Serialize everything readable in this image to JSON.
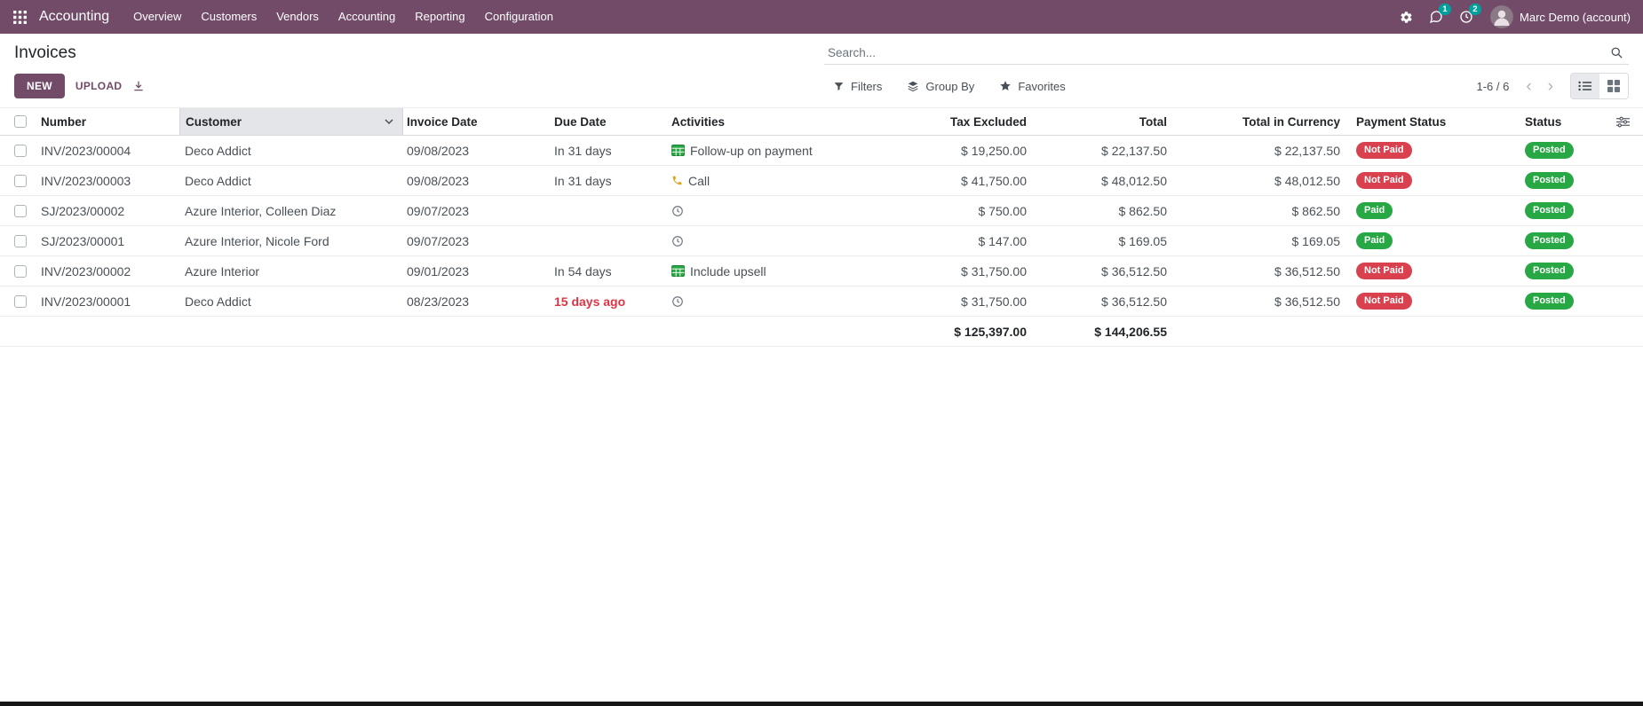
{
  "navbar": {
    "app_name": "Accounting",
    "menu_items": [
      "Overview",
      "Customers",
      "Vendors",
      "Accounting",
      "Reporting",
      "Configuration"
    ],
    "messages_badge": "1",
    "activities_badge": "2",
    "user_name": "Marc Demo (account)",
    "colors": {
      "navbar_bg": "#714B67",
      "badge_bg": "#00A09D"
    }
  },
  "control_panel": {
    "title": "Invoices",
    "search_placeholder": "Search...",
    "new_button": "NEW",
    "upload_button": "UPLOAD",
    "filters_label": "Filters",
    "group_by_label": "Group By",
    "favorites_label": "Favorites",
    "pager": "1-6 / 6"
  },
  "table": {
    "columns": [
      {
        "label": "Number",
        "align": "left"
      },
      {
        "label": "Customer",
        "align": "left",
        "sorted": "asc"
      },
      {
        "label": "Invoice Date",
        "align": "left"
      },
      {
        "label": "Due Date",
        "align": "left"
      },
      {
        "label": "Activities",
        "align": "left"
      },
      {
        "label": "Tax Excluded",
        "align": "right"
      },
      {
        "label": "Total",
        "align": "right"
      },
      {
        "label": "Total in Currency",
        "align": "right"
      },
      {
        "label": "Payment Status",
        "align": "left"
      },
      {
        "label": "Status",
        "align": "left"
      }
    ],
    "rows": [
      {
        "number": "INV/2023/00004",
        "customer": "Deco Addict",
        "invoice_date": "09/08/2023",
        "due_date": "In 31 days",
        "due_overdue": false,
        "activity_type": "followup",
        "activity_label": "Follow-up on payment",
        "tax_excluded": "$ 19,250.00",
        "total": "$ 22,137.50",
        "total_in_currency": "$ 22,137.50",
        "payment_status": "Not Paid",
        "payment_state": "not-paid",
        "status": "Posted",
        "status_state": "posted"
      },
      {
        "number": "INV/2023/00003",
        "customer": "Deco Addict",
        "invoice_date": "09/08/2023",
        "due_date": "In 31 days",
        "due_overdue": false,
        "activity_type": "call",
        "activity_label": "Call",
        "tax_excluded": "$ 41,750.00",
        "total": "$ 48,012.50",
        "total_in_currency": "$ 48,012.50",
        "payment_status": "Not Paid",
        "payment_state": "not-paid",
        "status": "Posted",
        "status_state": "posted"
      },
      {
        "number": "SJ/2023/00002",
        "customer": "Azure Interior, Colleen Diaz",
        "invoice_date": "09/07/2023",
        "due_date": "",
        "due_overdue": false,
        "activity_type": "clock",
        "activity_label": "",
        "tax_excluded": "$ 750.00",
        "total": "$ 862.50",
        "total_in_currency": "$ 862.50",
        "payment_status": "Paid",
        "payment_state": "paid",
        "status": "Posted",
        "status_state": "posted"
      },
      {
        "number": "SJ/2023/00001",
        "customer": "Azure Interior, Nicole Ford",
        "invoice_date": "09/07/2023",
        "due_date": "",
        "due_overdue": false,
        "activity_type": "clock",
        "activity_label": "",
        "tax_excluded": "$ 147.00",
        "total": "$ 169.05",
        "total_in_currency": "$ 169.05",
        "payment_status": "Paid",
        "payment_state": "paid",
        "status": "Posted",
        "status_state": "posted"
      },
      {
        "number": "INV/2023/00002",
        "customer": "Azure Interior",
        "invoice_date": "09/01/2023",
        "due_date": "In 54 days",
        "due_overdue": false,
        "activity_type": "followup",
        "activity_label": "Include upsell",
        "tax_excluded": "$ 31,750.00",
        "total": "$ 36,512.50",
        "total_in_currency": "$ 36,512.50",
        "payment_status": "Not Paid",
        "payment_state": "not-paid",
        "status": "Posted",
        "status_state": "posted"
      },
      {
        "number": "INV/2023/00001",
        "customer": "Deco Addict",
        "invoice_date": "08/23/2023",
        "due_date": "15 days ago",
        "due_overdue": true,
        "activity_type": "clock",
        "activity_label": "",
        "tax_excluded": "$ 31,750.00",
        "total": "$ 36,512.50",
        "total_in_currency": "$ 36,512.50",
        "payment_status": "Not Paid",
        "payment_state": "not-paid",
        "status": "Posted",
        "status_state": "posted"
      }
    ],
    "totals": {
      "tax_excluded": "$ 125,397.00",
      "total": "$ 144,206.55"
    },
    "colors": {
      "not_paid": "#d9414e",
      "paid": "#28a745",
      "posted": "#28a745",
      "overdue_text": "#dc3545"
    }
  }
}
